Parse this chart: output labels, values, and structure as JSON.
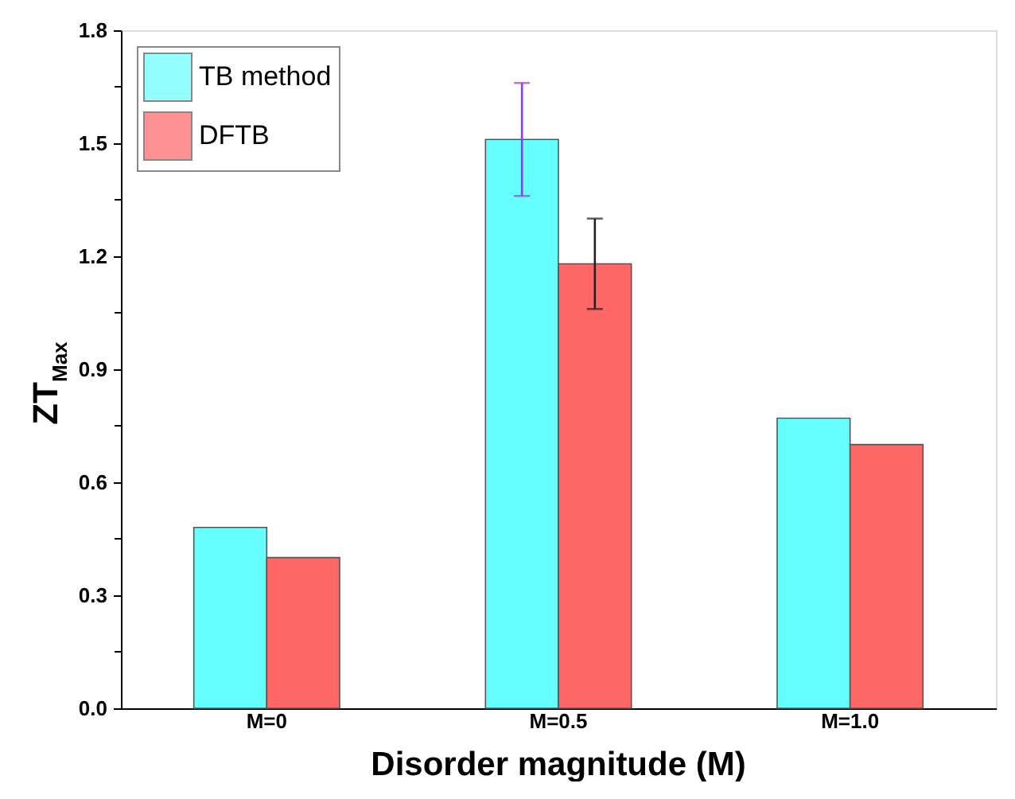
{
  "chart_data": {
    "type": "bar",
    "xlabel": "Disorder magnitude (M)",
    "ylabel": "ZT$_{Max}$",
    "categories": [
      "M=0",
      "M=0.5",
      "M=1.0"
    ],
    "series": [
      {
        "name": "TB method",
        "color": "#66ffff",
        "values": [
          0.48,
          1.51,
          0.77
        ],
        "errors": [
          null,
          0.15,
          null
        ]
      },
      {
        "name": "DFTB",
        "color": "#ff6666",
        "values": [
          0.4,
          1.18,
          0.7
        ],
        "errors": [
          null,
          [
            1.06,
            1.3
          ],
          null
        ]
      }
    ],
    "ylim": [
      0,
      1.8
    ],
    "yticks": [
      {
        "value": 0,
        "label": "0.0"
      },
      {
        "value": 0.15,
        "label": null
      },
      0.3,
      {
        "value": 0.45,
        "label": null
      },
      0.6,
      {
        "value": 0.75,
        "label": null
      },
      0.9,
      {
        "value": 1.05,
        "label": null
      },
      1.2,
      {
        "value": 1.35,
        "label": null
      },
      1.5,
      {
        "value": 1.65,
        "label": null
      },
      1.8
    ],
    "grid": false,
    "legend": "top left"
  }
}
